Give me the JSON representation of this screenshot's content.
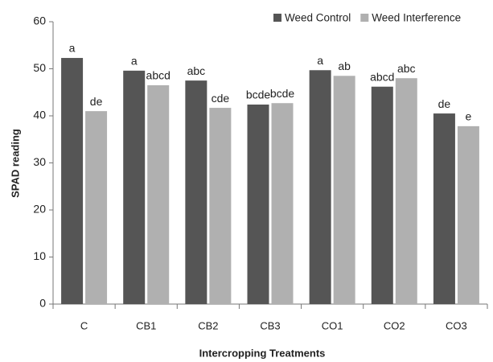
{
  "chart_data": {
    "type": "bar",
    "x_label": "Intercropping Treatments",
    "y_label": "SPAD reading",
    "categories": [
      "C",
      "CB1",
      "CB2",
      "CB3",
      "CO1",
      "CO2",
      "CO3"
    ],
    "series": [
      {
        "name": "Weed Control",
        "color": "#555555",
        "values": [
          52.3,
          49.6,
          47.5,
          42.4,
          49.7,
          46.2,
          40.5
        ],
        "letters": [
          "a",
          "a",
          "abc",
          "bcde",
          "a",
          "abcd",
          "de"
        ]
      },
      {
        "name": "Weed Interference",
        "color": "#b0b0b0",
        "values": [
          41,
          46.5,
          41.7,
          42.7,
          48.5,
          48,
          37.8
        ],
        "letters": [
          "de",
          "abcd",
          "cde",
          "bcde",
          "ab",
          "abc",
          "e"
        ]
      }
    ],
    "ylim": [
      0,
      60
    ],
    "yticks": [
      0,
      10,
      20,
      30,
      40,
      50,
      60
    ],
    "legend": "top-right"
  }
}
